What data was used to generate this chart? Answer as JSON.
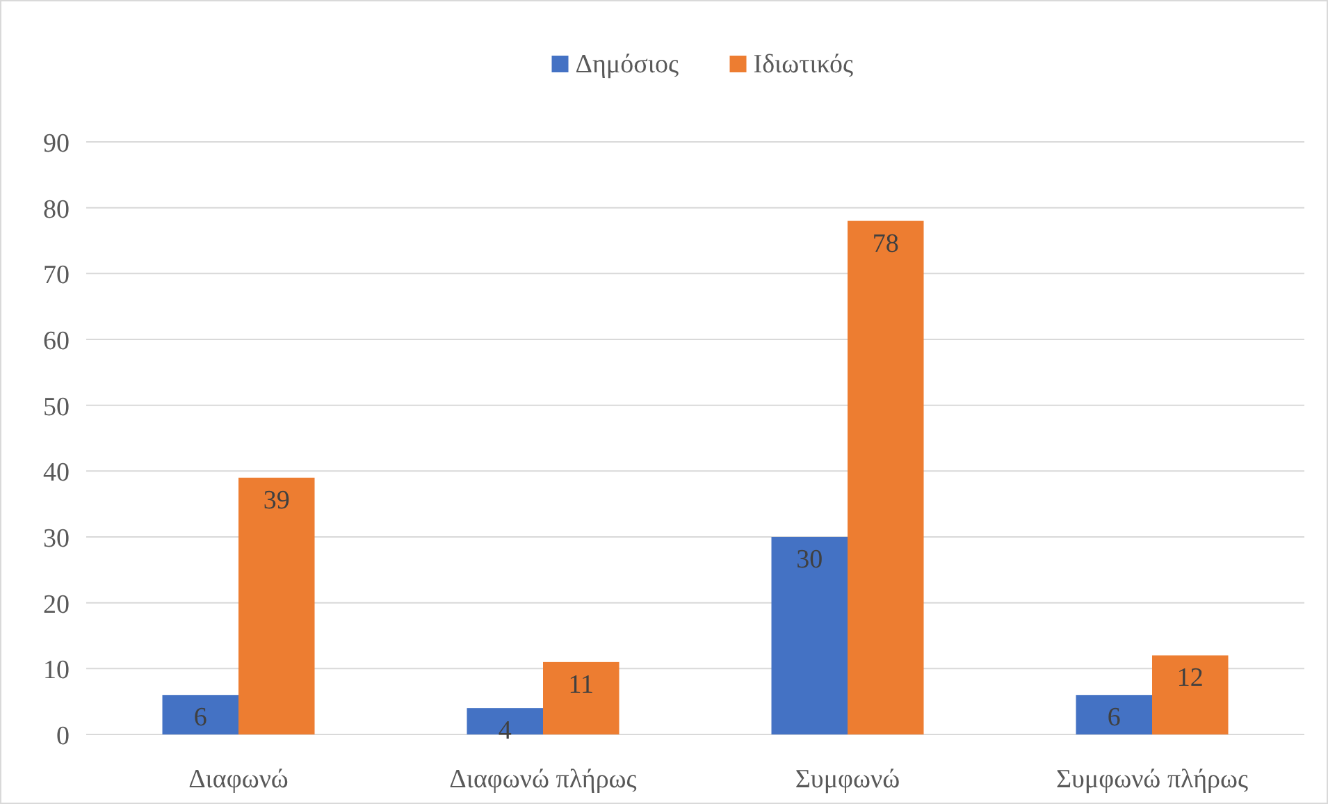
{
  "chart_data": {
    "type": "bar",
    "categories": [
      "Διαφωνώ",
      "Διαφωνώ πλήρως",
      "Συμφωνώ",
      "Συμφωνώ πλήρως"
    ],
    "series": [
      {
        "name": "Δημόσιος",
        "color": "#4472c4",
        "values": [
          6,
          4,
          30,
          6
        ]
      },
      {
        "name": "Ιδιωτικός",
        "color": "#ed7d31",
        "values": [
          39,
          11,
          78,
          12
        ]
      }
    ],
    "ylim": [
      0,
      90
    ],
    "yticks": [
      0,
      10,
      20,
      30,
      40,
      50,
      60,
      70,
      80,
      90
    ],
    "grid": "y",
    "legend": "top",
    "data_labels": true
  }
}
